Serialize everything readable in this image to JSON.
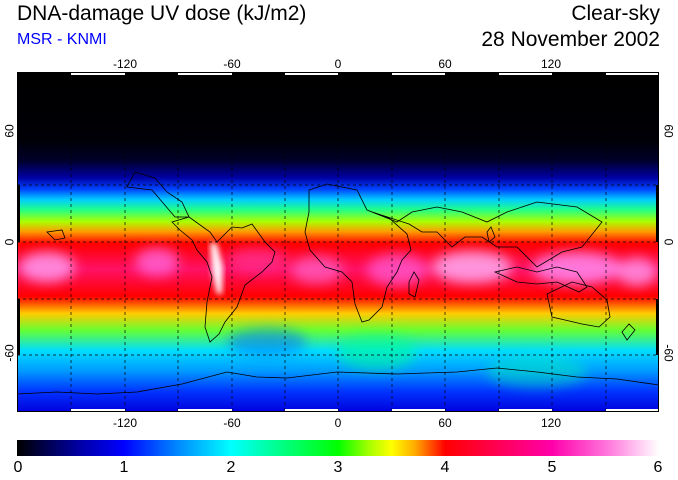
{
  "header": {
    "title": "DNA-damage UV dose (kJ/m2)",
    "credit": "MSR - KNMI",
    "condition": "Clear-sky",
    "date": "28 November 2002"
  },
  "map": {
    "lon_ticks": [
      "-120",
      "-60",
      "0",
      "60",
      "120"
    ],
    "lat_ticks": [
      "60",
      "0",
      "-60"
    ]
  },
  "colorbar": {
    "labels": [
      "0",
      "1",
      "2",
      "3",
      "4",
      "5",
      "6"
    ]
  },
  "colors": {
    "credit": "#0000ff",
    "scale_0": "#000000",
    "scale_1": "#0000ff",
    "scale_2": "#00ffff",
    "scale_3": "#00ff00",
    "scale_3_5": "#ffff00",
    "scale_4": "#ff0000",
    "scale_5": "#ff00aa",
    "scale_6": "#ffffff"
  }
}
